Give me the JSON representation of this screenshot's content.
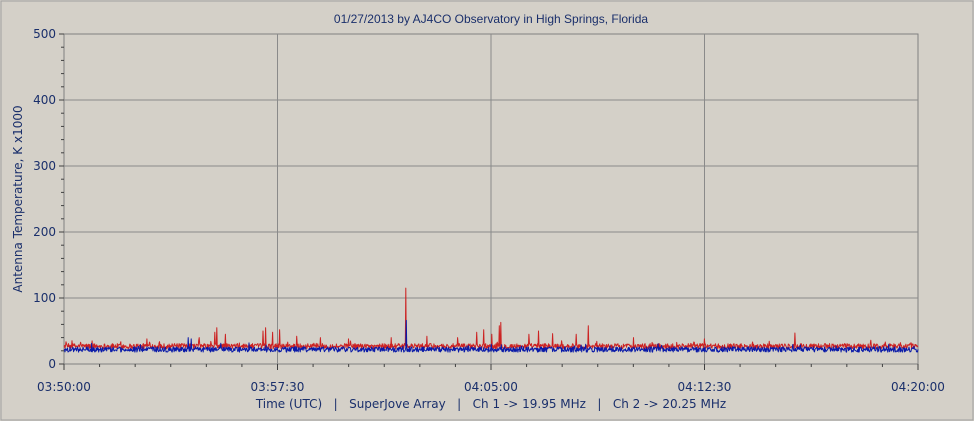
{
  "chart_data": {
    "type": "line",
    "title": "01/27/2013  by  AJ4CO Observatory  in  High Springs, Florida",
    "xlabel": "Time (UTC)   |   SuperJove Array   |   Ch 1 -> 19.95 MHz   |   Ch 2 -> 20.25 MHz",
    "ylabel": "Antenna Temperature, K x1000",
    "x_ticks": [
      "03:50:00",
      "03:57:30",
      "04:05:00",
      "04:12:30",
      "04:20:00"
    ],
    "y_ticks": [
      0,
      100,
      200,
      300,
      400,
      500
    ],
    "xlim_seconds": [
      0,
      1800
    ],
    "ylim": [
      0,
      500
    ],
    "grid": true,
    "colors": {
      "ch1": "#cc2222",
      "ch2": "#0a1aa8",
      "grid": "#8a8a8a",
      "plot_bg": "#d4d0c8",
      "text": "#1a2f6b"
    },
    "series": [
      {
        "channel": "ch1",
        "baseline": 27,
        "spikes": [
          {
            "t": 720,
            "v": 115
          },
          {
            "t": 35,
            "v": 33
          },
          {
            "t": 175,
            "v": 38
          },
          {
            "t": 285,
            "v": 40
          },
          {
            "t": 318,
            "v": 48
          },
          {
            "t": 322,
            "v": 55
          },
          {
            "t": 340,
            "v": 45
          },
          {
            "t": 420,
            "v": 50
          },
          {
            "t": 425,
            "v": 55
          },
          {
            "t": 440,
            "v": 48
          },
          {
            "t": 455,
            "v": 52
          },
          {
            "t": 490,
            "v": 42
          },
          {
            "t": 540,
            "v": 40
          },
          {
            "t": 600,
            "v": 38
          },
          {
            "t": 690,
            "v": 40
          },
          {
            "t": 765,
            "v": 42
          },
          {
            "t": 830,
            "v": 40
          },
          {
            "t": 870,
            "v": 48
          },
          {
            "t": 885,
            "v": 52
          },
          {
            "t": 902,
            "v": 45
          },
          {
            "t": 918,
            "v": 58
          },
          {
            "t": 921,
            "v": 63
          },
          {
            "t": 980,
            "v": 45
          },
          {
            "t": 1000,
            "v": 50
          },
          {
            "t": 1030,
            "v": 46
          },
          {
            "t": 1080,
            "v": 45
          },
          {
            "t": 1105,
            "v": 58
          },
          {
            "t": 1200,
            "v": 40
          },
          {
            "t": 1350,
            "v": 38
          },
          {
            "t": 1540,
            "v": 47
          },
          {
            "t": 1700,
            "v": 36
          }
        ]
      },
      {
        "channel": "ch2",
        "baseline": 22,
        "spikes": [
          {
            "t": 722,
            "v": 66
          },
          {
            "t": 262,
            "v": 40
          },
          {
            "t": 268,
            "v": 38
          },
          {
            "t": 390,
            "v": 32
          },
          {
            "t": 900,
            "v": 30
          },
          {
            "t": 1100,
            "v": 30
          }
        ]
      }
    ]
  }
}
